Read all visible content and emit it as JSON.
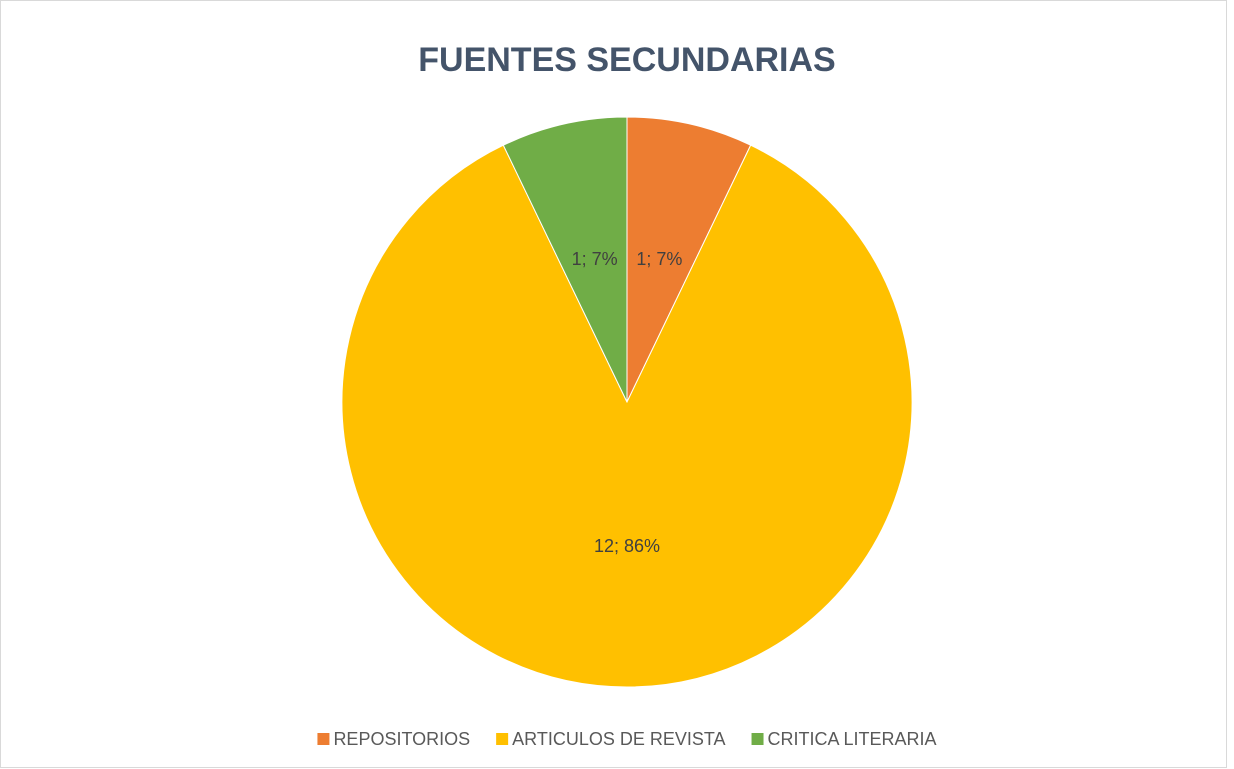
{
  "chart_data": {
    "type": "pie",
    "title": "FUENTES SECUNDARIAS",
    "categories": [
      "REPOSITORIOS",
      "ARTICULOS DE REVISTA",
      "CRITICA LITERARIA"
    ],
    "values": [
      1,
      12,
      1
    ],
    "value_labels": [
      "1; 7%",
      "12; 86%",
      "1; 7%"
    ],
    "colors": [
      "#ed7d31",
      "#ffc000",
      "#70ad47"
    ],
    "legend": "bottom"
  }
}
